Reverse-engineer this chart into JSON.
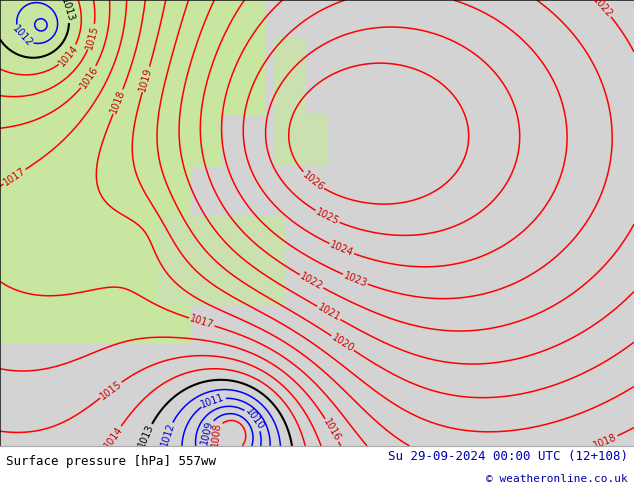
{
  "title_left": "Surface pressure [hPa] 557ww",
  "title_right": "Su 29-09-2024 00:00 UTC (12+108)",
  "title_right2": "© weatheronline.co.uk",
  "figsize": [
    6.34,
    4.9
  ],
  "dpi": 100,
  "bg_color_ocean": "#d3d3d3",
  "bg_color_land_green": "#c8e6a0",
  "contour_color_red": "#ff0000",
  "contour_color_blue": "#0000ff",
  "contour_color_black": "#000000",
  "label_color_red": "#cc0000",
  "label_color_blue": "#0000cc",
  "label_color_black": "#000000",
  "footer_bg": "#ffffff",
  "footer_text_color": "#000000",
  "footer_right_color": "#0000aa"
}
